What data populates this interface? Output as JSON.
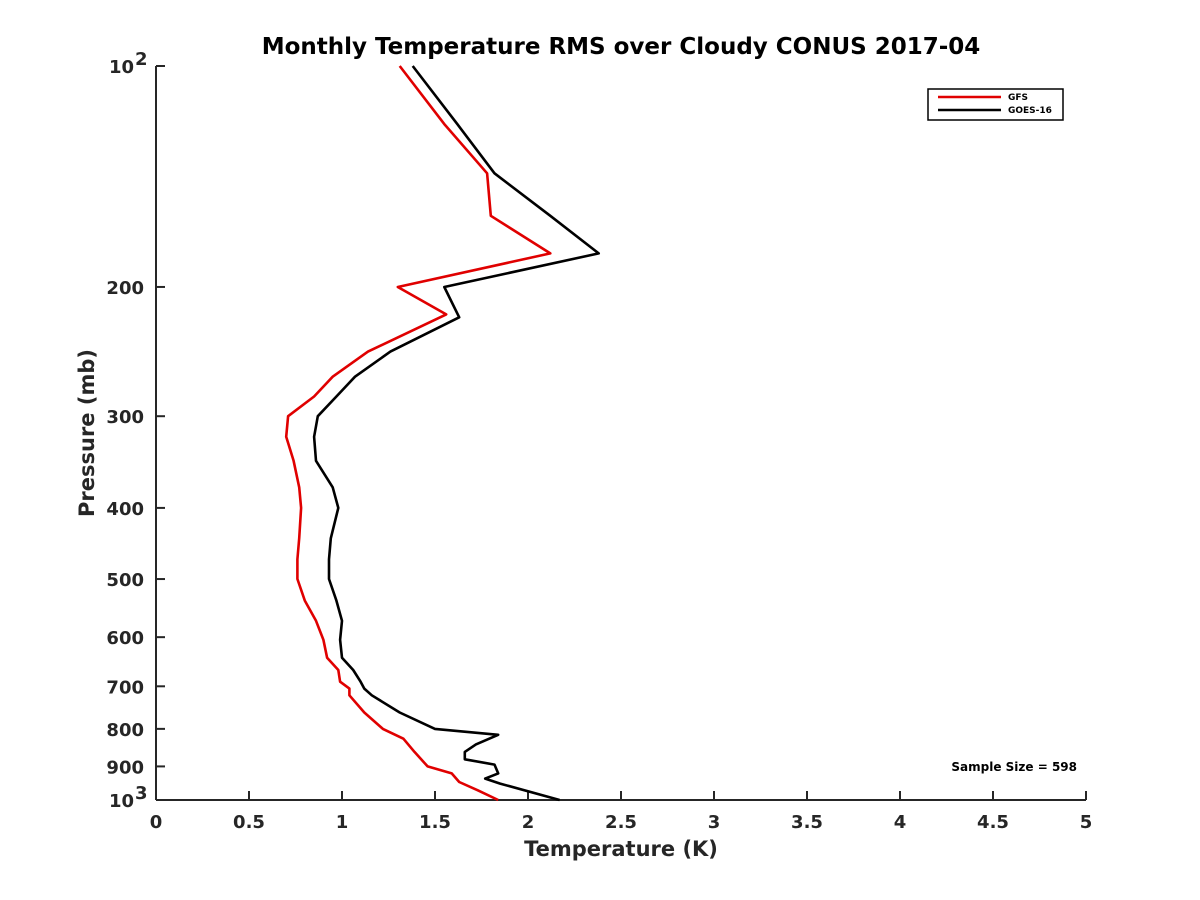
{
  "chart_data": {
    "type": "line",
    "title": "Monthly Temperature RMS over Cloudy CONUS  2017-04",
    "xlabel": "Temperature (K)",
    "ylabel": "Pressure (mb)",
    "xlim": [
      0,
      5
    ],
    "ylim": [
      100,
      1000
    ],
    "y_scale": "log",
    "y_reversed": true,
    "grid": false,
    "legend_position": "top-right",
    "x_ticks": [
      0,
      0.5,
      1,
      1.5,
      2,
      2.5,
      3,
      3.5,
      4,
      4.5,
      5
    ],
    "x_tick_labels": [
      "0",
      "0.5",
      "1",
      "1.5",
      "2",
      "2.5",
      "3",
      "3.5",
      "4",
      "4.5",
      "5"
    ],
    "y_ticks": [
      {
        "value": 100,
        "label": "10",
        "sup": "2"
      },
      {
        "value": 200,
        "label": "200"
      },
      {
        "value": 300,
        "label": "300"
      },
      {
        "value": 400,
        "label": "400"
      },
      {
        "value": 500,
        "label": "500"
      },
      {
        "value": 600,
        "label": "600"
      },
      {
        "value": 700,
        "label": "700"
      },
      {
        "value": 800,
        "label": "800"
      },
      {
        "value": 900,
        "label": "900"
      },
      {
        "value": 1000,
        "label": "10",
        "sup": "3"
      }
    ],
    "annotation": "Sample Size = 598",
    "series": [
      {
        "name": "GFS",
        "color": "#e00000",
        "points": [
          [
            1.31,
            100
          ],
          [
            1.55,
            120
          ],
          [
            1.78,
            140
          ],
          [
            1.8,
            160
          ],
          [
            2.12,
            180
          ],
          [
            1.3,
            200
          ],
          [
            1.56,
            218
          ],
          [
            1.14,
            245
          ],
          [
            0.95,
            265
          ],
          [
            0.85,
            282
          ],
          [
            0.71,
            300
          ],
          [
            0.7,
            320
          ],
          [
            0.74,
            345
          ],
          [
            0.77,
            375
          ],
          [
            0.78,
            400
          ],
          [
            0.77,
            440
          ],
          [
            0.76,
            470
          ],
          [
            0.76,
            500
          ],
          [
            0.8,
            535
          ],
          [
            0.86,
            570
          ],
          [
            0.9,
            605
          ],
          [
            0.92,
            640
          ],
          [
            0.98,
            665
          ],
          [
            0.99,
            690
          ],
          [
            1.04,
            705
          ],
          [
            1.04,
            720
          ],
          [
            1.12,
            760
          ],
          [
            1.22,
            800
          ],
          [
            1.33,
            825
          ],
          [
            1.39,
            860
          ],
          [
            1.46,
            900
          ],
          [
            1.59,
            920
          ],
          [
            1.63,
            945
          ],
          [
            1.73,
            970
          ],
          [
            1.84,
            1000
          ]
        ]
      },
      {
        "name": "GOES-16",
        "color": "#000000",
        "points": [
          [
            1.38,
            100
          ],
          [
            1.62,
            120
          ],
          [
            1.82,
            140
          ],
          [
            2.12,
            160
          ],
          [
            2.38,
            180
          ],
          [
            1.55,
            200
          ],
          [
            1.63,
            220
          ],
          [
            1.26,
            245
          ],
          [
            1.07,
            265
          ],
          [
            0.97,
            282
          ],
          [
            0.87,
            300
          ],
          [
            0.85,
            320
          ],
          [
            0.86,
            345
          ],
          [
            0.95,
            375
          ],
          [
            0.98,
            400
          ],
          [
            0.94,
            440
          ],
          [
            0.93,
            470
          ],
          [
            0.93,
            500
          ],
          [
            0.97,
            535
          ],
          [
            1.0,
            570
          ],
          [
            0.99,
            605
          ],
          [
            1.0,
            640
          ],
          [
            1.06,
            665
          ],
          [
            1.1,
            690
          ],
          [
            1.12,
            705
          ],
          [
            1.16,
            720
          ],
          [
            1.31,
            760
          ],
          [
            1.5,
            800
          ],
          [
            1.84,
            815
          ],
          [
            1.72,
            840
          ],
          [
            1.66,
            860
          ],
          [
            1.66,
            880
          ],
          [
            1.82,
            895
          ],
          [
            1.84,
            920
          ],
          [
            1.77,
            935
          ],
          [
            1.85,
            950
          ],
          [
            2.17,
            1000
          ]
        ]
      }
    ]
  }
}
